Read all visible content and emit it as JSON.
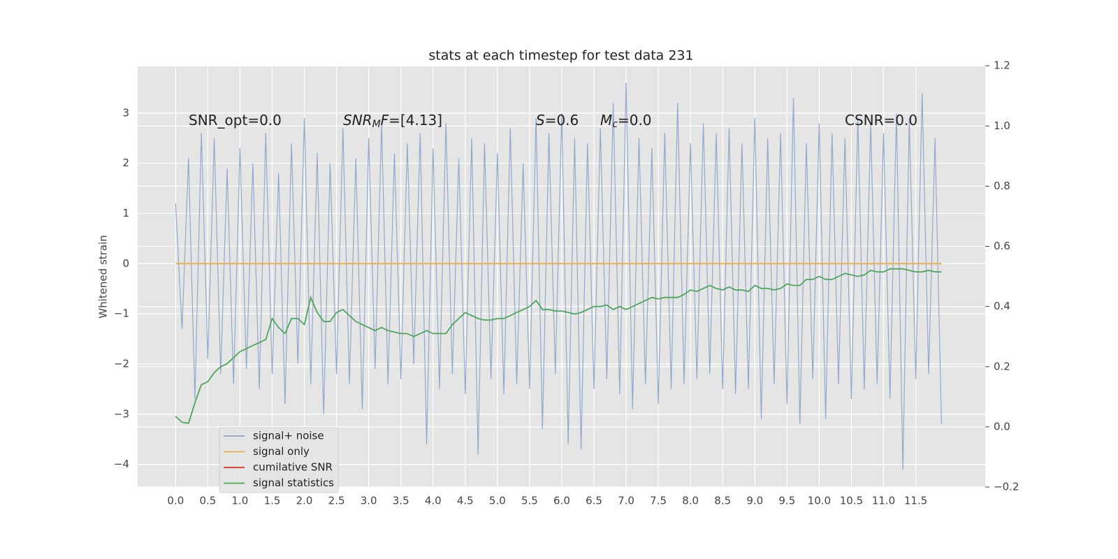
{
  "chart_data": {
    "type": "line",
    "title": "stats at each timestep for test data 231",
    "y_label": "Whitened strain",
    "grid": true,
    "legend": "lower left",
    "xlim": [
      -0.59,
      12.58
    ],
    "ylim": [
      -4.45,
      3.93
    ],
    "y2lim": [
      -0.2,
      1.198
    ],
    "xticks": [
      {
        "value": 0,
        "label": "0.0"
      },
      {
        "value": 0.5,
        "label": "0.5"
      },
      {
        "value": 1,
        "label": "1.0"
      },
      {
        "value": 1.5,
        "label": "1.5"
      },
      {
        "value": 2,
        "label": "2.0"
      },
      {
        "value": 2.5,
        "label": "2.5"
      },
      {
        "value": 3,
        "label": "3.0"
      },
      {
        "value": 3.5,
        "label": "3.5"
      },
      {
        "value": 4,
        "label": "4.0"
      },
      {
        "value": 4.5,
        "label": "4.5"
      },
      {
        "value": 5,
        "label": "5.0"
      },
      {
        "value": 5.5,
        "label": "5.5"
      },
      {
        "value": 6,
        "label": "6.0"
      },
      {
        "value": 6.5,
        "label": "6.5"
      },
      {
        "value": 7,
        "label": "7.0"
      },
      {
        "value": 7.5,
        "label": "7.5"
      },
      {
        "value": 8,
        "label": "8.0"
      },
      {
        "value": 8.5,
        "label": "8.5"
      },
      {
        "value": 9,
        "label": "9.0"
      },
      {
        "value": 9.5,
        "label": "9.5"
      },
      {
        "value": 10,
        "label": "10.0"
      },
      {
        "value": 10.5,
        "label": "10.5"
      },
      {
        "value": 11,
        "label": "11.0"
      },
      {
        "value": 11.5,
        "label": "11.5"
      }
    ],
    "yticks": [
      {
        "value": -4,
        "label": "−4"
      },
      {
        "value": -3,
        "label": "−3"
      },
      {
        "value": -2,
        "label": "−2"
      },
      {
        "value": -1,
        "label": "−1"
      },
      0,
      1,
      2,
      3
    ],
    "y2ticks": [
      {
        "value": -0.2,
        "label": "−0.2"
      },
      {
        "value": 0,
        "label": "0.0"
      },
      0.2,
      0.4,
      0.6,
      0.8,
      {
        "value": 1,
        "label": "1.0"
      },
      1.2
    ],
    "annotations": [
      {
        "parts": [
          {
            "text": "SNR_opt=0.0",
            "style": "normal"
          }
        ]
      },
      {
        "parts": [
          {
            "text": "SNR",
            "style": "italic"
          },
          {
            "text": "M",
            "style": "sub"
          },
          {
            "text": "F",
            "style": "italic"
          },
          {
            "text": "=[4.13]",
            "style": "normal"
          }
        ]
      },
      {
        "parts": [
          {
            "text": "S",
            "style": "italic"
          },
          {
            "text": "=0.6",
            "style": "normal"
          }
        ]
      },
      {
        "parts": [
          {
            "text": "M",
            "style": "italic"
          },
          {
            "text": "c",
            "style": "sub"
          },
          {
            "text": "=0.0",
            "style": "normal"
          }
        ]
      },
      {
        "parts": [
          {
            "text": "CSNR=0.0",
            "style": "normal"
          }
        ]
      }
    ],
    "x": [
      0.0,
      0.1,
      0.2,
      0.3,
      0.4,
      0.5,
      0.6,
      0.7,
      0.8,
      0.9,
      1.0,
      1.1,
      1.2,
      1.3,
      1.4,
      1.5,
      1.6,
      1.7,
      1.8,
      1.9,
      2.0,
      2.1,
      2.2,
      2.3,
      2.4,
      2.5,
      2.6,
      2.7,
      2.8,
      2.9,
      3.0,
      3.1,
      3.2,
      3.3,
      3.4,
      3.5,
      3.6,
      3.7,
      3.8,
      3.9,
      4.0,
      4.1,
      4.2,
      4.3,
      4.4,
      4.5,
      4.6,
      4.7,
      4.8,
      4.9,
      5.0,
      5.1,
      5.2,
      5.3,
      5.4,
      5.5,
      5.6,
      5.7,
      5.8,
      5.9,
      6.0,
      6.1,
      6.2,
      6.3,
      6.4,
      6.5,
      6.6,
      6.7,
      6.8,
      6.9,
      7.0,
      7.1,
      7.2,
      7.3,
      7.4,
      7.5,
      7.6,
      7.7,
      7.8,
      7.9,
      8.0,
      8.1,
      8.2,
      8.3,
      8.4,
      8.5,
      8.6,
      8.7,
      8.8,
      8.9,
      9.0,
      9.1,
      9.2,
      9.3,
      9.4,
      9.5,
      9.6,
      9.7,
      9.8,
      9.9,
      10.0,
      10.1,
      10.2,
      10.3,
      10.4,
      10.5,
      10.6,
      10.7,
      10.8,
      10.9,
      11.0,
      11.1,
      11.2,
      11.3,
      11.4,
      11.5,
      11.6,
      11.7,
      11.8,
      11.9
    ],
    "series": [
      {
        "name": "signal+ noise",
        "color": "#8fa4cb",
        "values": [
          1.2,
          -1.3,
          2.1,
          -2.7,
          2.6,
          -1.9,
          2.5,
          -2.2,
          1.9,
          -2.4,
          2.3,
          -2.1,
          2.0,
          -2.5,
          2.6,
          -2.2,
          1.8,
          -2.8,
          2.4,
          -2.0,
          2.9,
          -2.4,
          2.2,
          -3.0,
          2.0,
          -2.2,
          2.7,
          -2.4,
          2.1,
          -2.9,
          2.5,
          -2.1,
          2.8,
          -2.4,
          2.2,
          -2.3,
          2.4,
          -2.0,
          2.6,
          -3.6,
          2.3,
          -2.5,
          2.8,
          -2.2,
          2.1,
          -2.6,
          2.5,
          -3.8,
          2.4,
          -2.3,
          2.2,
          -2.6,
          2.7,
          -2.4,
          2.0,
          -2.5,
          2.9,
          -3.3,
          2.6,
          -2.2,
          3.0,
          -3.6,
          2.5,
          -3.7,
          2.4,
          -2.5,
          2.7,
          -2.3,
          3.2,
          -2.6,
          3.6,
          -2.9,
          2.5,
          -2.4,
          2.3,
          -2.8,
          2.6,
          -2.5,
          3.2,
          -2.4,
          2.4,
          -2.3,
          2.8,
          -2.2,
          2.6,
          -2.5,
          2.7,
          -2.6,
          2.4,
          -2.5,
          2.9,
          -3.1,
          2.5,
          -2.4,
          2.6,
          -2.8,
          3.3,
          -3.2,
          2.4,
          -2.3,
          2.8,
          -3.1,
          2.6,
          -2.4,
          2.5,
          -2.7,
          2.9,
          -2.5,
          2.8,
          -2.4,
          2.6,
          -2.7,
          3.0,
          -4.1,
          2.9,
          -2.3,
          3.4,
          -2.2,
          2.5,
          -3.2
        ]
      },
      {
        "name": "signal only",
        "color": "#e8b04a",
        "values": [
          0,
          0,
          0,
          0,
          0,
          0,
          0,
          0,
          0,
          0,
          0,
          0,
          0,
          0,
          0,
          0,
          0,
          0,
          0,
          0,
          0,
          0,
          0,
          0,
          0,
          0,
          0,
          0,
          0,
          0,
          0,
          0,
          0,
          0,
          0,
          0,
          0,
          0,
          0,
          0,
          0,
          0,
          0,
          0,
          0,
          0,
          0,
          0,
          0,
          0,
          0,
          0,
          0,
          0,
          0,
          0,
          0,
          0,
          0,
          0,
          0,
          0,
          0,
          0,
          0,
          0,
          0,
          0,
          0,
          0,
          0,
          0,
          0,
          0,
          0,
          0,
          0,
          0,
          0,
          0,
          0,
          0,
          0,
          0,
          0,
          0,
          0,
          0,
          0,
          0,
          0,
          0,
          0,
          0,
          0,
          0,
          0,
          0,
          0,
          0,
          0,
          0,
          0,
          0,
          0,
          0,
          0,
          0,
          0,
          0,
          0,
          0,
          0,
          0,
          0,
          0,
          0,
          0,
          0,
          0
        ]
      },
      {
        "name": "cumilative SNR",
        "color": "#e0302a",
        "values": [
          null,
          null,
          null,
          null,
          null,
          null,
          null,
          null,
          null,
          null,
          null,
          null,
          null,
          null,
          null,
          null,
          null,
          null,
          null,
          null,
          null,
          null,
          null,
          null,
          null,
          null,
          null,
          null,
          null,
          null,
          null,
          null,
          null,
          null,
          null,
          null,
          null,
          null,
          null,
          null,
          null,
          null,
          null,
          null,
          null,
          null,
          null,
          null,
          null,
          null,
          null,
          null,
          null,
          null,
          null,
          null,
          null,
          null,
          null,
          null,
          null,
          null,
          null,
          null,
          null,
          null,
          null,
          null,
          null,
          null,
          null,
          null,
          null,
          null,
          null,
          null,
          null,
          null,
          null,
          null,
          null,
          null,
          null,
          null,
          null,
          null,
          null,
          null,
          null,
          null,
          null,
          null,
          null,
          null,
          null,
          null,
          null,
          null,
          null,
          null,
          null,
          null,
          null,
          null,
          null,
          null,
          null,
          null,
          null,
          null,
          null,
          null,
          null,
          null,
          null,
          null,
          null,
          null,
          null,
          null
        ]
      },
      {
        "name": "signal statistics",
        "color": "#4ea65e",
        "axis": "y2",
        "values": [
          0.035,
          0.015,
          0.012,
          0.08,
          0.14,
          0.15,
          0.18,
          0.2,
          0.21,
          0.23,
          0.25,
          0.26,
          0.27,
          0.28,
          0.29,
          0.36,
          0.33,
          0.31,
          0.36,
          0.36,
          0.34,
          0.43,
          0.38,
          0.35,
          0.35,
          0.38,
          0.39,
          0.37,
          0.35,
          0.34,
          0.33,
          0.32,
          0.33,
          0.32,
          0.315,
          0.31,
          0.31,
          0.3,
          0.31,
          0.32,
          0.31,
          0.31,
          0.31,
          0.34,
          0.36,
          0.38,
          0.37,
          0.36,
          0.355,
          0.355,
          0.36,
          0.36,
          0.37,
          0.38,
          0.39,
          0.4,
          0.42,
          0.39,
          0.39,
          0.385,
          0.385,
          0.38,
          0.375,
          0.38,
          0.39,
          0.4,
          0.4,
          0.405,
          0.39,
          0.4,
          0.39,
          0.4,
          0.41,
          0.42,
          0.43,
          0.425,
          0.43,
          0.43,
          0.43,
          0.44,
          0.455,
          0.45,
          0.46,
          0.47,
          0.46,
          0.455,
          0.465,
          0.455,
          0.455,
          0.45,
          0.47,
          0.46,
          0.46,
          0.455,
          0.46,
          0.475,
          0.47,
          0.47,
          0.49,
          0.49,
          0.5,
          0.49,
          0.49,
          0.5,
          0.51,
          0.505,
          0.5,
          0.505,
          0.52,
          0.515,
          0.515,
          0.525,
          0.525,
          0.525,
          0.52,
          0.515,
          0.515,
          0.52,
          0.515,
          0.515
        ]
      }
    ]
  }
}
